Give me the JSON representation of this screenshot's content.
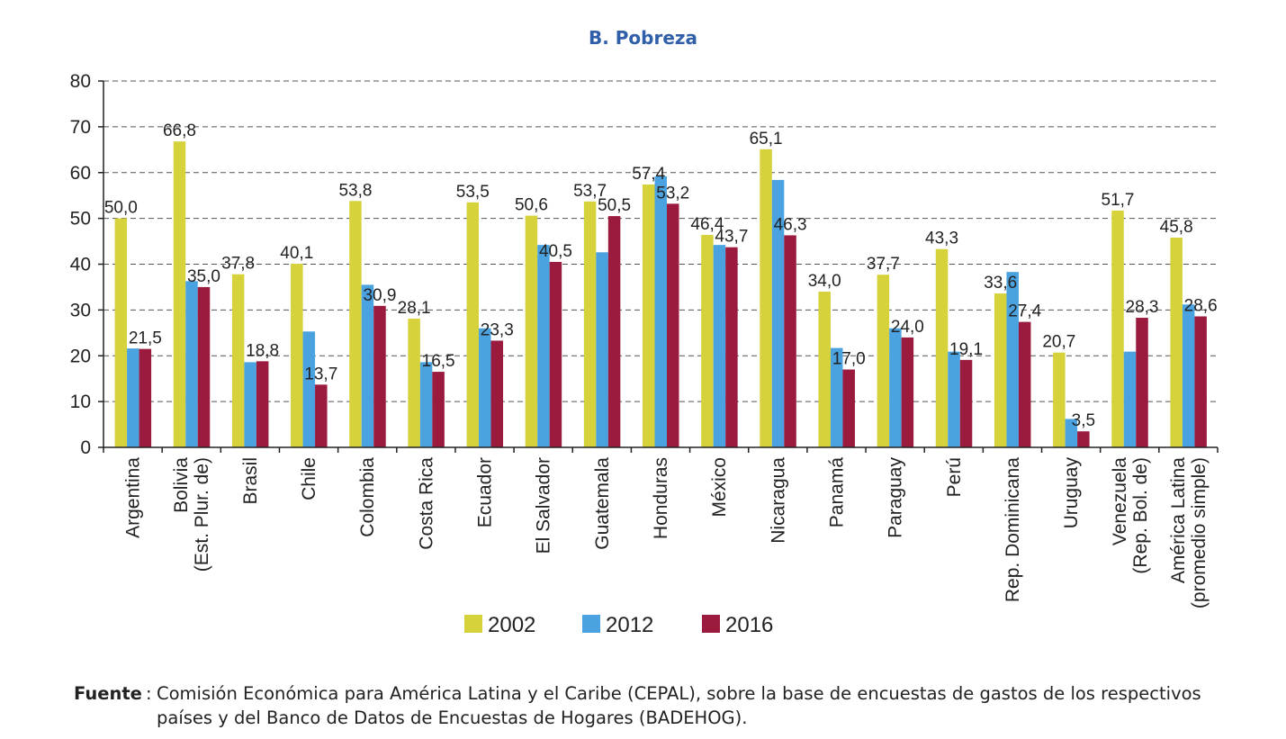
{
  "chart_data": {
    "type": "bar",
    "title": "B. Pobreza",
    "ylim": [
      0,
      80
    ],
    "yticks": [
      0,
      10,
      20,
      30,
      40,
      50,
      60,
      70,
      80
    ],
    "grid": true,
    "legend_position": "bottom",
    "categories": [
      [
        "Argentina"
      ],
      [
        "Bolivia",
        "(Est. Plur. de)"
      ],
      [
        "Brasil"
      ],
      [
        "Chile"
      ],
      [
        "Colombia"
      ],
      [
        "Costa Rica"
      ],
      [
        "Ecuador"
      ],
      [
        "El Salvador"
      ],
      [
        "Guatemala"
      ],
      [
        "Honduras"
      ],
      [
        "México"
      ],
      [
        "Nicaragua"
      ],
      [
        "Panamá"
      ],
      [
        "Paraguay"
      ],
      [
        "Perú"
      ],
      [
        "Rep. Dominicana"
      ],
      [
        "Uruguay"
      ],
      [
        "Venezuela",
        "(Rep. Bol. de)"
      ],
      [
        "América Latina",
        "(promedio simple)"
      ]
    ],
    "series": [
      {
        "name": "2002",
        "color": "#d6d23c",
        "values": [
          50.0,
          66.8,
          37.8,
          40.1,
          53.8,
          28.1,
          53.5,
          50.6,
          53.7,
          57.4,
          46.4,
          65.1,
          34.0,
          37.7,
          43.3,
          33.6,
          20.7,
          51.7,
          45.8
        ],
        "labels": [
          "50,0",
          "66,8",
          "37,8",
          "40,1",
          "53,8",
          "28,1",
          "53,5",
          "50,6",
          "53,7",
          "57,4",
          "46,4",
          "65,1",
          "34,0",
          "37,7",
          "43,3",
          "33,6",
          "20,7",
          "51,7",
          "45,8"
        ]
      },
      {
        "name": "2012",
        "color": "#4aa3e0",
        "values": [
          21.6,
          36.3,
          18.6,
          25.3,
          35.5,
          18.6,
          26.0,
          44.2,
          42.6,
          59.2,
          44.2,
          58.4,
          21.7,
          26.0,
          20.9,
          38.3,
          6.2,
          20.9,
          31.2
        ],
        "labels": [
          "",
          "",
          "",
          "",
          "",
          "",
          "",
          "",
          "",
          "",
          "",
          "",
          "",
          "",
          "",
          "",
          "",
          "",
          ""
        ]
      },
      {
        "name": "2016",
        "color": "#9b1b3e",
        "values": [
          21.5,
          35.0,
          18.8,
          13.7,
          30.9,
          16.5,
          23.3,
          40.5,
          50.5,
          53.2,
          43.7,
          46.3,
          17.0,
          24.0,
          19.1,
          27.4,
          3.5,
          28.3,
          28.6
        ],
        "labels": [
          "21,5",
          "35,0",
          "18,8",
          "13,7",
          "30,9",
          "16,5",
          "23,3",
          "40,5",
          "50,5",
          "53,2",
          "43,7",
          "46,3",
          "17,0",
          "24,0",
          "19,1",
          "27,4",
          "3,5",
          "28,3",
          "28,6"
        ]
      }
    ]
  },
  "source": {
    "label": "Fuente",
    "colon": ":",
    "text": "Comisión Económica para América Latina y el Caribe (CEPAL), sobre la base de encuestas de gastos de los respectivos países y del Banco de Datos de Encuestas de Hogares (BADEHOG)."
  }
}
